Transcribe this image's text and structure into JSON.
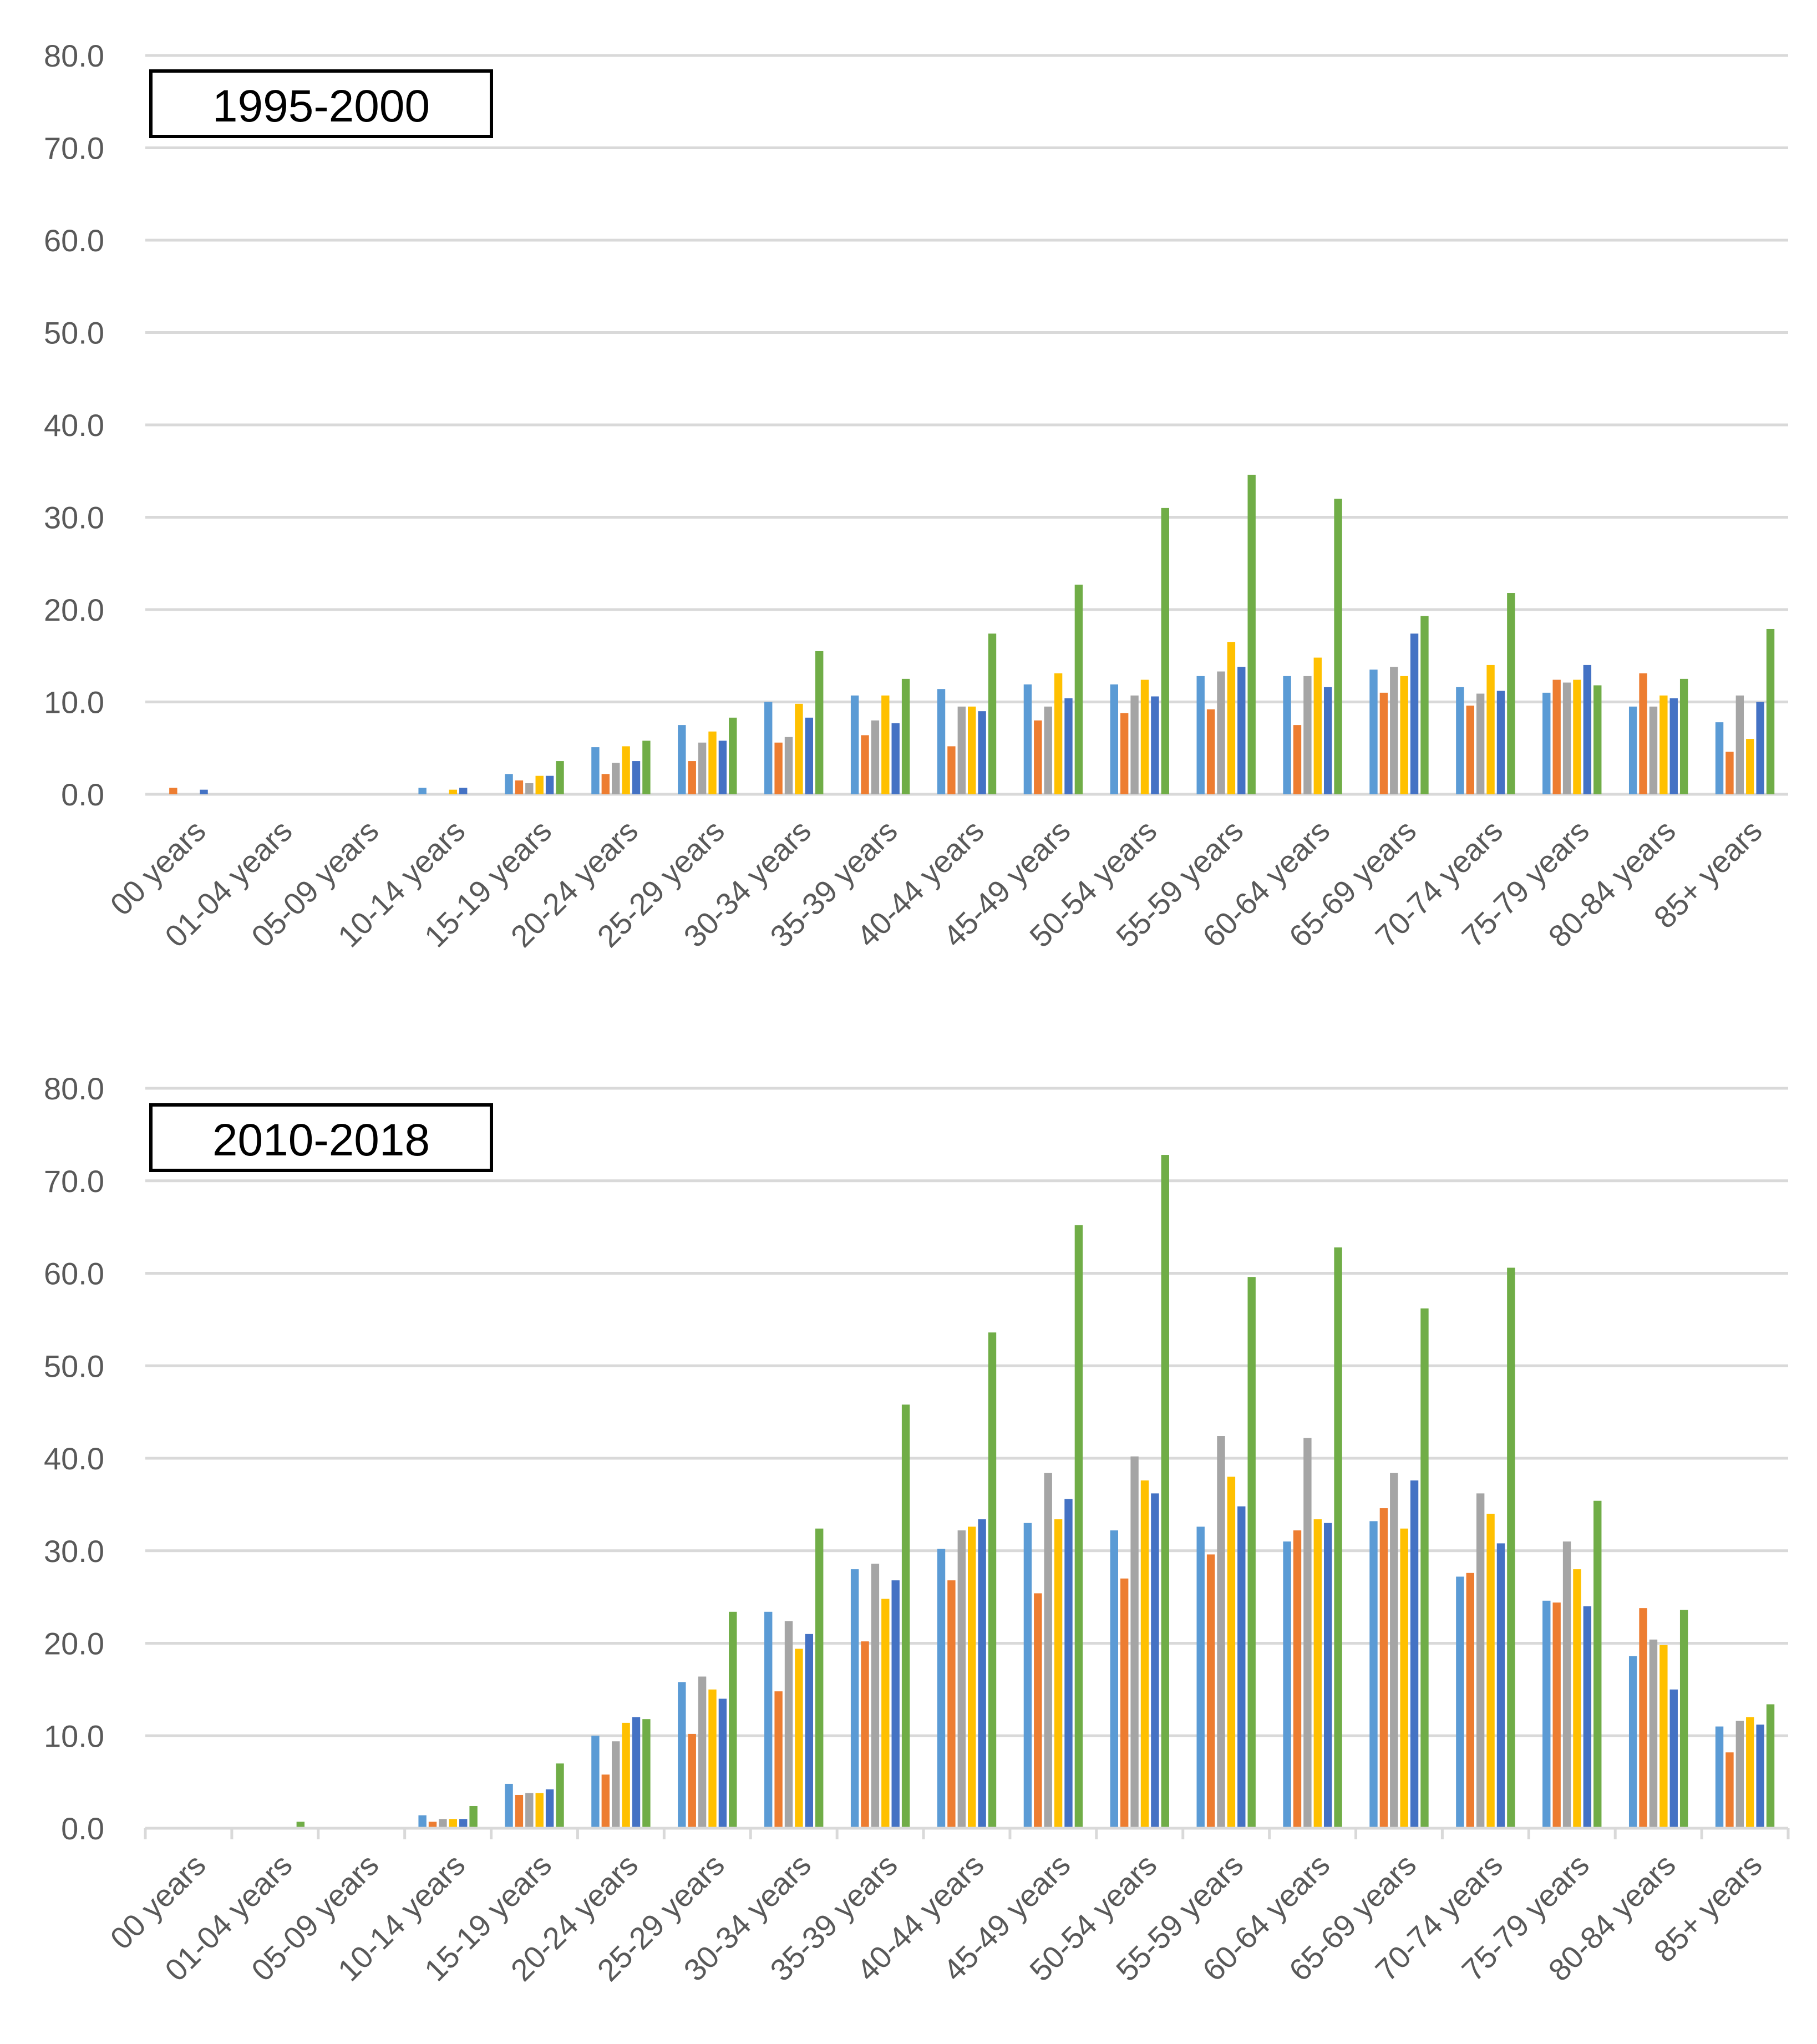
{
  "chart_data": [
    {
      "type": "bar",
      "title": "1995-2000",
      "ylim": [
        0,
        80
      ],
      "yticks": [
        "0.0",
        "10.0",
        "20.0",
        "30.0",
        "40.0",
        "50.0",
        "60.0",
        "70.0",
        "80.0"
      ],
      "grid": true,
      "legend": "none",
      "categories": [
        "00 years",
        "01-04 years",
        "05-09 years",
        "10-14 years",
        "15-19 years",
        "20-24 years",
        "25-29 years",
        "30-34 years",
        "35-39 years",
        "40-44 years",
        "45-49 years",
        "50-54 years",
        "55-59 years",
        "60-64 years",
        "65-69 years",
        "70-74 years",
        "75-79 years",
        "80-84 years",
        "85+ years"
      ],
      "series": [
        {
          "name": "series-1",
          "color": "#5b9bd5",
          "values": [
            0.0,
            0.0,
            0.0,
            0.7,
            2.2,
            5.1,
            7.5,
            10.0,
            10.7,
            11.4,
            11.9,
            11.9,
            12.8,
            12.8,
            13.5,
            11.6,
            11.0,
            9.5,
            7.8
          ]
        },
        {
          "name": "series-2",
          "color": "#ed7d31",
          "values": [
            0.7,
            0.0,
            0.0,
            0.0,
            1.5,
            2.2,
            3.6,
            5.6,
            6.4,
            5.2,
            8.0,
            8.8,
            9.2,
            7.5,
            11.0,
            9.6,
            12.4,
            13.1,
            4.6
          ]
        },
        {
          "name": "series-3",
          "color": "#a5a5a5",
          "values": [
            0.0,
            0.0,
            0.0,
            0.0,
            1.2,
            3.4,
            5.6,
            6.2,
            8.0,
            9.5,
            9.5,
            10.7,
            13.3,
            12.8,
            13.8,
            10.9,
            12.1,
            9.5,
            10.7
          ]
        },
        {
          "name": "series-4",
          "color": "#ffc000",
          "values": [
            0.0,
            0.0,
            0.0,
            0.5,
            2.0,
            5.2,
            6.8,
            9.8,
            10.7,
            9.5,
            13.1,
            12.4,
            16.5,
            14.8,
            12.8,
            14.0,
            12.4,
            10.7,
            6.0
          ]
        },
        {
          "name": "series-5",
          "color": "#4472c4",
          "values": [
            0.5,
            0.0,
            0.0,
            0.7,
            2.0,
            3.6,
            5.8,
            8.3,
            7.7,
            9.0,
            10.4,
            10.6,
            13.8,
            11.6,
            17.4,
            11.2,
            14.0,
            10.4,
            10.0
          ]
        },
        {
          "name": "series-6",
          "color": "#70ad47",
          "values": [
            0.0,
            0.0,
            0.0,
            0.0,
            3.6,
            5.8,
            8.3,
            15.5,
            12.5,
            17.4,
            22.7,
            31.0,
            34.6,
            32.0,
            19.3,
            21.8,
            11.8,
            12.5,
            17.9
          ]
        }
      ]
    },
    {
      "type": "bar",
      "title": "2010-2018",
      "ylim": [
        0,
        80
      ],
      "yticks": [
        "0.0",
        "10.0",
        "20.0",
        "30.0",
        "40.0",
        "50.0",
        "60.0",
        "70.0",
        "80.0"
      ],
      "grid": true,
      "legend": "none",
      "categories": [
        "00 years",
        "01-04 years",
        "05-09 years",
        "10-14 years",
        "15-19 years",
        "20-24 years",
        "25-29 years",
        "30-34 years",
        "35-39 years",
        "40-44 years",
        "45-49 years",
        "50-54 years",
        "55-59 years",
        "60-64 years",
        "65-69 years",
        "70-74 years",
        "75-79 years",
        "80-84 years",
        "85+ years"
      ],
      "series": [
        {
          "name": "series-1",
          "color": "#5b9bd5",
          "values": [
            0.0,
            0.0,
            0.0,
            1.4,
            4.8,
            10.0,
            15.8,
            23.4,
            28.0,
            30.2,
            33.0,
            32.2,
            32.6,
            31.0,
            33.2,
            27.2,
            24.6,
            18.6,
            11.0
          ]
        },
        {
          "name": "series-2",
          "color": "#ed7d31",
          "values": [
            0.0,
            0.0,
            0.0,
            0.7,
            3.6,
            5.8,
            10.2,
            14.8,
            20.2,
            26.8,
            25.4,
            27.0,
            29.6,
            32.2,
            34.6,
            27.6,
            24.4,
            23.8,
            8.2
          ]
        },
        {
          "name": "series-3",
          "color": "#a5a5a5",
          "values": [
            0.0,
            0.0,
            0.0,
            1.0,
            3.8,
            9.4,
            16.4,
            22.4,
            28.6,
            32.2,
            38.4,
            40.2,
            42.4,
            42.2,
            38.4,
            36.2,
            31.0,
            20.4,
            11.6
          ]
        },
        {
          "name": "series-4",
          "color": "#ffc000",
          "values": [
            0.0,
            0.0,
            0.0,
            1.0,
            3.8,
            11.4,
            15.0,
            19.4,
            24.8,
            32.6,
            33.4,
            37.6,
            38.0,
            33.4,
            32.4,
            34.0,
            28.0,
            19.8,
            12.0
          ]
        },
        {
          "name": "series-5",
          "color": "#4472c4",
          "values": [
            0.0,
            0.0,
            0.0,
            1.0,
            4.2,
            12.0,
            14.0,
            21.0,
            26.8,
            33.4,
            35.6,
            36.2,
            34.8,
            33.0,
            37.6,
            30.8,
            24.0,
            15.0,
            11.2
          ]
        },
        {
          "name": "series-6",
          "color": "#70ad47",
          "values": [
            0.0,
            0.7,
            0.0,
            2.4,
            7.0,
            11.8,
            23.4,
            32.4,
            45.8,
            53.6,
            65.2,
            72.8,
            59.6,
            62.8,
            56.2,
            60.6,
            35.4,
            23.6,
            13.4
          ]
        }
      ]
    }
  ]
}
